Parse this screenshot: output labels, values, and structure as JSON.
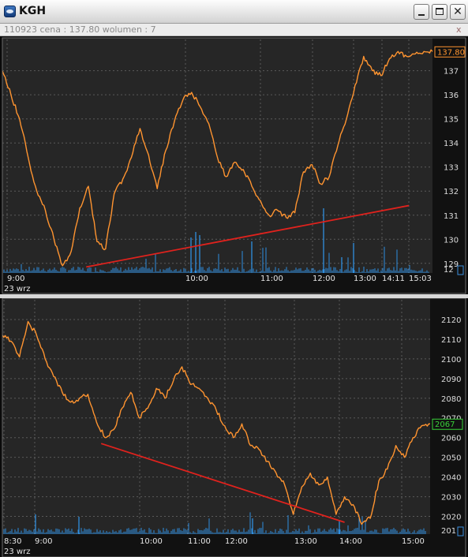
{
  "window": {
    "title": "KGH",
    "info": "110923  cena : 137.80  wolumen : 7",
    "close_x": "x"
  },
  "colors": {
    "line": "#ff9430",
    "trend": "#e0221d",
    "volume": "#2f8fe0",
    "grid": "#5a5a5a",
    "panel": "#262626"
  },
  "chart_data": [
    {
      "type": "line",
      "ylim": [
        128.6,
        138.3
      ],
      "y_ticks": [
        129,
        130,
        131,
        132,
        133,
        134,
        135,
        136,
        137
      ],
      "x_ticks": [
        "9:00",
        "10:00",
        "11:00",
        "12:00",
        "13:00",
        "14:11",
        "15:03"
      ],
      "date_label": "23 wrz",
      "current_value": "137.80",
      "axis_corner_label": "12",
      "price_series": {
        "x": [
          0,
          0.02,
          0.04,
          0.06,
          0.08,
          0.1,
          0.12,
          0.14,
          0.16,
          0.18,
          0.2,
          0.22,
          0.24,
          0.26,
          0.28,
          0.3,
          0.32,
          0.34,
          0.36,
          0.38,
          0.4,
          0.42,
          0.44,
          0.46,
          0.48,
          0.5,
          0.52,
          0.54,
          0.56,
          0.58,
          0.6,
          0.62,
          0.64,
          0.66,
          0.68,
          0.7,
          0.72,
          0.74,
          0.76,
          0.78,
          0.8,
          0.82,
          0.84,
          0.86,
          0.88,
          0.9,
          0.92,
          0.94,
          0.96,
          0.98,
          1
        ],
        "values": [
          137.0,
          136.0,
          135.0,
          133.4,
          132.0,
          131.2,
          130.0,
          128.9,
          129.5,
          131.3,
          132.2,
          129.9,
          129.6,
          131.9,
          132.5,
          133.4,
          134.6,
          133.5,
          132.1,
          133.7,
          134.9,
          135.8,
          136.1,
          135.5,
          134.8,
          133.4,
          132.6,
          133.2,
          132.9,
          132.2,
          131.6,
          131.0,
          131.2,
          130.9,
          131.1,
          132.8,
          133.1,
          132.3,
          132.6,
          133.9,
          135.0,
          136.4,
          137.6,
          137.0,
          136.8,
          137.5,
          137.8,
          137.6,
          137.7,
          137.8,
          137.8
        ]
      },
      "trendline": {
        "from": [
          0.195,
          128.85
        ],
        "to": [
          0.945,
          131.4
        ]
      }
    },
    {
      "type": "line",
      "ylim": [
        2011,
        2130
      ],
      "y_ticks": [
        2020,
        2030,
        2040,
        2050,
        2060,
        2070,
        2080,
        2090,
        2100,
        2110,
        2120
      ],
      "x_ticks": [
        "8:30",
        "9:00",
        "10:00",
        "11:00",
        "12:00",
        "13:00",
        "14:00",
        "15:00"
      ],
      "date_label": "23 wrz",
      "current_value": "2067",
      "axis_corner_label": "201",
      "price_series": {
        "x": [
          0,
          0.02,
          0.04,
          0.06,
          0.08,
          0.1,
          0.12,
          0.14,
          0.16,
          0.18,
          0.2,
          0.22,
          0.24,
          0.26,
          0.28,
          0.3,
          0.32,
          0.34,
          0.36,
          0.38,
          0.4,
          0.42,
          0.44,
          0.46,
          0.48,
          0.5,
          0.52,
          0.54,
          0.56,
          0.58,
          0.6,
          0.62,
          0.64,
          0.66,
          0.68,
          0.7,
          0.72,
          0.74,
          0.76,
          0.78,
          0.8,
          0.82,
          0.84,
          0.86,
          0.88,
          0.9,
          0.92,
          0.94,
          0.96,
          0.98,
          1
        ],
        "values": [
          2112,
          2109,
          2101,
          2119,
          2112,
          2100,
          2091,
          2083,
          2078,
          2080,
          2082,
          2068,
          2060,
          2064,
          2075,
          2083,
          2070,
          2075,
          2085,
          2080,
          2089,
          2096,
          2087,
          2085,
          2080,
          2074,
          2066,
          2060,
          2067,
          2056,
          2054,
          2048,
          2042,
          2036,
          2021,
          2035,
          2042,
          2036,
          2040,
          2021,
          2030,
          2026,
          2016,
          2019,
          2038,
          2044,
          2056,
          2050,
          2060,
          2066,
          2067
        ]
      },
      "trendline": {
        "from": [
          0.231,
          2057
        ],
        "to": [
          0.8,
          2017
        ]
      }
    }
  ]
}
